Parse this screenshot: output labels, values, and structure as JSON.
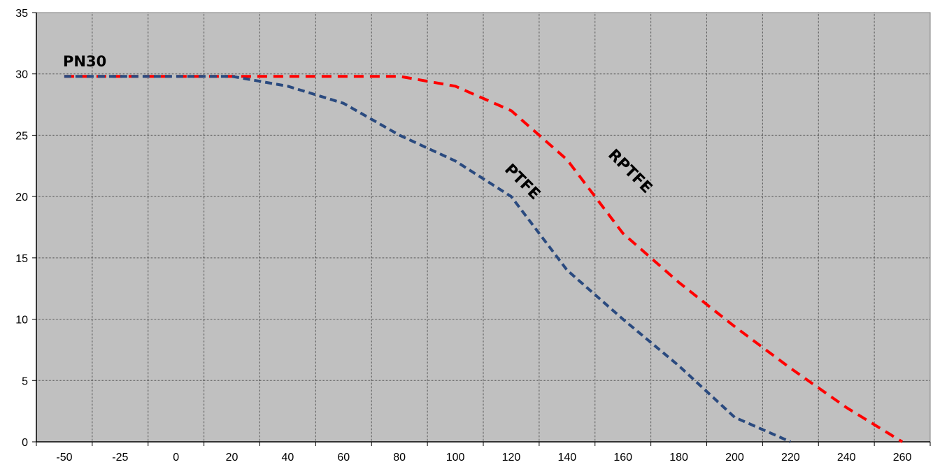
{
  "chart_data": {
    "type": "line",
    "title": "",
    "xlabel": "",
    "ylabel": "",
    "x_tick_labels": [
      "-50",
      "-25",
      "0",
      "20",
      "40",
      "60",
      "80",
      "100",
      "120",
      "140",
      "160",
      "180",
      "200",
      "220",
      "240",
      "260"
    ],
    "y_tick_labels": [
      "0",
      "5",
      "10",
      "15",
      "20",
      "25",
      "30",
      "35"
    ],
    "ylim": [
      0,
      35
    ],
    "grid": true,
    "plot_background": "#c0c0c0",
    "series": [
      {
        "name": "RPTFE",
        "color": "#ff0000",
        "line_style": "dashed",
        "points": [
          [
            "-50",
            29.8
          ],
          [
            "-25",
            29.8
          ],
          [
            "0",
            29.8
          ],
          [
            "20",
            29.8
          ],
          [
            "40",
            29.8
          ],
          [
            "60",
            29.8
          ],
          [
            "80",
            29.8
          ],
          [
            "100",
            29.0
          ],
          [
            "120",
            27.0
          ],
          [
            "130",
            25.0
          ],
          [
            "140",
            23.0
          ],
          [
            "160",
            17.0
          ],
          [
            "180",
            13.0
          ],
          [
            "200",
            9.4
          ],
          [
            "220",
            6.0
          ],
          [
            "240",
            2.8
          ],
          [
            "260",
            0
          ]
        ]
      },
      {
        "name": "PTFE",
        "color": "#2a4a7f",
        "line_style": "dashed",
        "points": [
          [
            "-50",
            29.8
          ],
          [
            "-25",
            29.8
          ],
          [
            "0",
            29.8
          ],
          [
            "20",
            29.8
          ],
          [
            "40",
            29.0
          ],
          [
            "60",
            27.6
          ],
          [
            "80",
            25.0
          ],
          [
            "100",
            22.9
          ],
          [
            "120",
            20.0
          ],
          [
            "140",
            14.0
          ],
          [
            "160",
            10.0
          ],
          [
            "180",
            6.2
          ],
          [
            "200",
            2.0
          ],
          [
            "220",
            0
          ]
        ]
      }
    ],
    "annotations": [
      {
        "text": "PN30"
      },
      {
        "text": "PTFE"
      },
      {
        "text": "RPTFE"
      }
    ]
  }
}
